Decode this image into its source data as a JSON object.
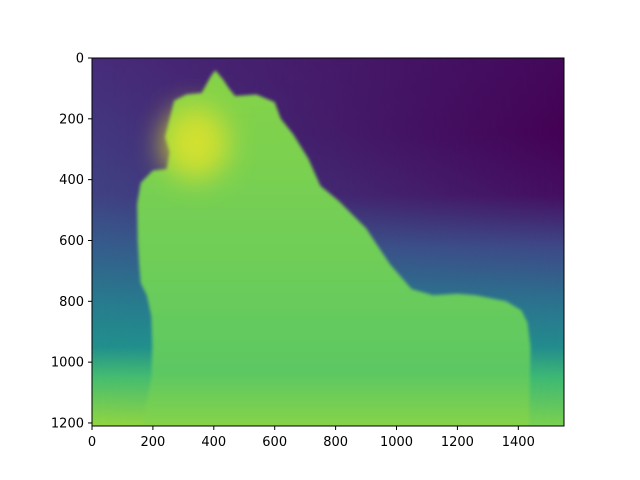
{
  "chart_data": {
    "type": "heatmap",
    "title": "",
    "xlabel": "",
    "ylabel": "",
    "colormap": "viridis",
    "xlim": [
      0,
      1550
    ],
    "ylim": [
      1210,
      0
    ],
    "y_axis_inverted": true,
    "x_ticks": [
      0,
      200,
      400,
      600,
      800,
      1000,
      1200,
      1400
    ],
    "x_tick_labels": [
      "0",
      "200",
      "400",
      "600",
      "800",
      "1000",
      "1200",
      "1400"
    ],
    "y_ticks": [
      0,
      200,
      400,
      600,
      800,
      1000,
      1200
    ],
    "y_tick_labels": [
      "0",
      "200",
      "400",
      "600",
      "800",
      "1000",
      "1200"
    ],
    "grid": false,
    "legend": "none",
    "colorbar": false,
    "background_gradient": [
      {
        "y": 0,
        "left": 0.13,
        "right": 0.02
      },
      {
        "y": 250,
        "left": 0.17,
        "right": 0.0
      },
      {
        "y": 450,
        "left": 0.2,
        "right": 0.04
      },
      {
        "y": 620,
        "left": 0.3,
        "right": 0.22
      },
      {
        "y": 800,
        "left": 0.42,
        "right": 0.38
      },
      {
        "y": 950,
        "left": 0.5,
        "right": 0.48
      },
      {
        "y": 1050,
        "left": 0.7,
        "right": 0.68
      },
      {
        "y": 1210,
        "left": 0.84,
        "right": 0.8
      }
    ],
    "foreground_object": {
      "value": 0.78,
      "outline": [
        [
          165,
          1210
        ],
        [
          195,
          1050
        ],
        [
          198,
          950
        ],
        [
          195,
          850
        ],
        [
          180,
          780
        ],
        [
          160,
          740
        ],
        [
          155,
          680
        ],
        [
          150,
          600
        ],
        [
          148,
          480
        ],
        [
          160,
          410
        ],
        [
          200,
          370
        ],
        [
          245,
          365
        ],
        [
          255,
          310
        ],
        [
          240,
          260
        ],
        [
          250,
          220
        ],
        [
          270,
          140
        ],
        [
          310,
          120
        ],
        [
          360,
          115
        ],
        [
          390,
          60
        ],
        [
          405,
          40
        ],
        [
          430,
          70
        ],
        [
          450,
          100
        ],
        [
          470,
          125
        ],
        [
          540,
          120
        ],
        [
          600,
          145
        ],
        [
          620,
          200
        ],
        [
          660,
          250
        ],
        [
          710,
          330
        ],
        [
          750,
          420
        ],
        [
          810,
          470
        ],
        [
          860,
          520
        ],
        [
          900,
          560
        ],
        [
          940,
          620
        ],
        [
          980,
          680
        ],
        [
          1050,
          760
        ],
        [
          1120,
          780
        ],
        [
          1200,
          775
        ],
        [
          1260,
          780
        ],
        [
          1310,
          790
        ],
        [
          1360,
          800
        ],
        [
          1410,
          830
        ],
        [
          1430,
          870
        ],
        [
          1440,
          950
        ],
        [
          1435,
          1210
        ]
      ]
    },
    "highlight_region": {
      "value": 0.96,
      "center": [
        340,
        280
      ],
      "radius_x": 110,
      "radius_y": 120
    }
  }
}
